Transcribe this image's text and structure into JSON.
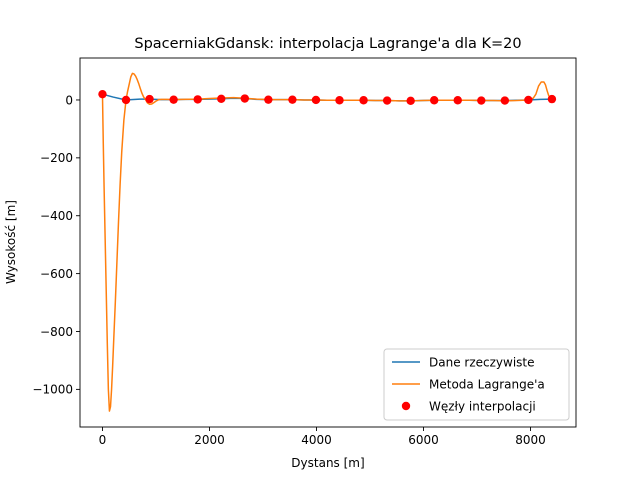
{
  "chart_data": {
    "type": "line",
    "title": "SpacerniakGdansk: interpolacja Lagrange'a dla K=20",
    "xlabel": "Dystans [m]",
    "ylabel": "Wysokość [m]",
    "xlim": [
      -420,
      8850
    ],
    "ylim": [
      -1130,
      145
    ],
    "x_ticks": [
      {
        "value": 0,
        "label": "0"
      },
      {
        "value": 2000,
        "label": "2000"
      },
      {
        "value": 4000,
        "label": "4000"
      },
      {
        "value": 6000,
        "label": "6000"
      },
      {
        "value": 8000,
        "label": "8000"
      }
    ],
    "y_ticks": [
      {
        "value": 0,
        "label": "0"
      },
      {
        "value": -200,
        "label": "−200"
      },
      {
        "value": -400,
        "label": "−400"
      },
      {
        "value": -600,
        "label": "−600"
      },
      {
        "value": -800,
        "label": "−800"
      },
      {
        "value": -1000,
        "label": "−1000"
      }
    ],
    "grid": false,
    "legend_position": "lower-right",
    "series": [
      {
        "name": "Dane rzeczywiste",
        "kind": "line",
        "color": "#1f77b4",
        "x": [
          0,
          200,
          440,
          700,
          880,
          1100,
          1330,
          1550,
          1780,
          2000,
          2220,
          2450,
          2660,
          2880,
          3100,
          3320,
          3550,
          3770,
          3990,
          4200,
          4430,
          4650,
          4880,
          5100,
          5320,
          5550,
          5760,
          5980,
          6200,
          6420,
          6640,
          6860,
          7080,
          7300,
          7520,
          7740,
          7960,
          8180,
          8400
        ],
        "y": [
          20,
          10,
          0,
          3,
          3,
          1,
          1,
          2,
          2,
          3,
          4,
          6,
          5,
          2,
          1,
          1,
          1,
          0,
          0,
          -1,
          -1,
          -1,
          -1,
          -2,
          -2,
          -3,
          -3,
          -2,
          -1,
          -1,
          -1,
          -1,
          -2,
          -2,
          -2,
          -1,
          0,
          2,
          3
        ]
      },
      {
        "name": "Metoda Lagrange'a",
        "kind": "line",
        "color": "#ff7f0e",
        "x": [
          0,
          15,
          30,
          50,
          70,
          90,
          110,
          130,
          150,
          170,
          190,
          210,
          240,
          270,
          300,
          330,
          360,
          400,
          440,
          470,
          500,
          530,
          560,
          590,
          620,
          650,
          680,
          710,
          740,
          770,
          800,
          840,
          880,
          920,
          960,
          1000,
          1050,
          1100,
          1200,
          1330,
          1500,
          1780,
          2000,
          2220,
          2450,
          2660,
          2880,
          3100,
          3320,
          3550,
          3770,
          3990,
          4200,
          4430,
          4650,
          4880,
          5100,
          5320,
          5550,
          5760,
          5980,
          6200,
          6420,
          6640,
          6860,
          7080,
          7300,
          7520,
          7740,
          7850,
          7960,
          8050,
          8100,
          8150,
          8200,
          8250,
          8280,
          8310,
          8340,
          8370,
          8400
        ],
        "y": [
          20,
          -150,
          -300,
          -480,
          -660,
          -840,
          -1000,
          -1075,
          -1060,
          -1000,
          -920,
          -830,
          -700,
          -560,
          -420,
          -290,
          -180,
          -70,
          0,
          30,
          55,
          80,
          92,
          90,
          82,
          70,
          55,
          38,
          22,
          10,
          3,
          -10,
          -15,
          -14,
          -9,
          -4,
          1,
          2,
          2,
          1,
          2,
          3,
          5,
          7,
          8,
          6,
          3,
          1,
          1,
          1,
          0,
          0,
          -1,
          -1,
          -1,
          -1,
          -2,
          -2,
          -3,
          -3,
          -2,
          -1,
          -1,
          -1,
          -1,
          -2,
          -2,
          -3,
          -2,
          -1,
          0,
          6,
          20,
          48,
          62,
          62,
          52,
          32,
          15,
          6,
          3
        ]
      },
      {
        "name": "Węzły interpolacji",
        "kind": "scatter",
        "color": "#ff0000",
        "x": [
          0,
          440,
          880,
          1330,
          1780,
          2220,
          2660,
          3100,
          3550,
          3990,
          4430,
          4880,
          5320,
          5760,
          6200,
          6640,
          7080,
          7520,
          7960,
          8400
        ],
        "y": [
          20,
          0,
          3,
          1,
          2,
          4,
          5,
          1,
          1,
          0,
          -1,
          -1,
          -2,
          -3,
          -1,
          -1,
          -2,
          -2,
          0,
          3
        ]
      }
    ]
  }
}
